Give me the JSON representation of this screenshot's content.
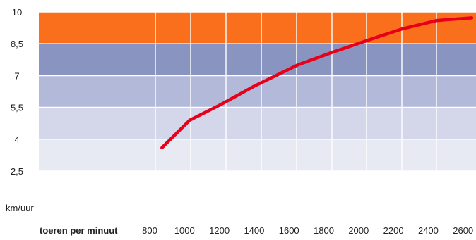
{
  "chart_data": {
    "type": "line",
    "x_axis_label": "toeren per minuut",
    "y_axis_label": "km/uur",
    "x_ticks": [
      "800",
      "1000",
      "1200",
      "1400",
      "1600",
      "1800",
      "2000",
      "2200",
      "2400",
      "2600"
    ],
    "y_ticks": [
      "10",
      "8,5",
      "7",
      "5,5",
      "4",
      "2,5"
    ],
    "xlim": [
      800,
      2600
    ],
    "ylim": [
      2.5,
      10
    ],
    "grid": true,
    "bands": [
      {
        "from": 2.5,
        "to": 4,
        "color": "#e8eaf3"
      },
      {
        "from": 4,
        "to": 5.5,
        "color": "#d3d7e9"
      },
      {
        "from": 5.5,
        "to": 7,
        "color": "#b3b9d8"
      },
      {
        "from": 7,
        "to": 8.5,
        "color": "#8a94c1"
      },
      {
        "from": 8.5,
        "to": 10,
        "color": "#fa6f1c"
      }
    ],
    "series": [
      {
        "color": "#e8001a",
        "x": [
          870,
          1030,
          1200,
          1400,
          1650,
          1850,
          2100,
          2250,
          2450,
          2650
        ],
        "y": [
          3.6,
          4.9,
          5.6,
          6.5,
          7.5,
          8.1,
          8.8,
          9.2,
          9.6,
          9.72
        ]
      }
    ]
  }
}
